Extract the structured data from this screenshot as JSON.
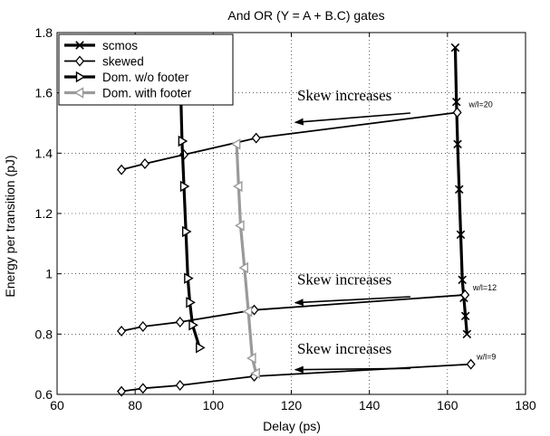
{
  "chart_data": {
    "type": "line",
    "title": "And OR (Y = A + B.C) gates",
    "xlabel": "Delay (ps)",
    "ylabel": "Energy per transition (pJ)",
    "xlim": [
      60,
      180
    ],
    "ylim": [
      0.6,
      1.8
    ],
    "xticks": [
      60,
      80,
      100,
      120,
      140,
      160,
      180
    ],
    "yticks": [
      0.6,
      0.8,
      1.0,
      1.2,
      1.4,
      1.6,
      1.8
    ],
    "xtick_labels": [
      "60",
      "80",
      "100",
      "120",
      "140",
      "160",
      "180"
    ],
    "ytick_labels": [
      "0.6",
      "0.8",
      "1",
      "1.2",
      "1.4",
      "1.6",
      "1.8"
    ],
    "grid": true,
    "legend_position": "top-left",
    "series": [
      {
        "name": "scmos",
        "color": "#000000",
        "marker": "x",
        "line_width": 3.2,
        "groups": [
          {
            "x": [
              162.0,
              162.3,
              162.6,
              163.0,
              163.4,
              163.8,
              164.2,
              164.6,
              165.0
            ],
            "y": [
              1.75,
              1.57,
              1.43,
              1.28,
              1.13,
              0.98,
              0.92,
              0.86,
              0.8
            ]
          }
        ]
      },
      {
        "name": "skewed",
        "color": "#000000",
        "marker": "diamond",
        "line_width": 1.8,
        "groups": [
          {
            "x": [
              76.5,
              82.0,
              91.5,
              110.5,
              166.0
            ],
            "y": [
              0.61,
              0.62,
              0.63,
              0.66,
              0.7
            ]
          },
          {
            "x": [
              76.5,
              82.0,
              91.5,
              110.5,
              164.5
            ],
            "y": [
              0.81,
              0.825,
              0.84,
              0.88,
              0.93
            ]
          },
          {
            "x": [
              76.5,
              82.5,
              92.5,
              111.0,
              162.5
            ],
            "y": [
              1.345,
              1.365,
              1.395,
              1.45,
              1.535
            ]
          }
        ]
      },
      {
        "name": "Dom. w/o footer",
        "color": "#000000",
        "marker": "triangle-right",
        "line_width": 3.2,
        "groups": [
          {
            "x": [
              91.5,
              92.0,
              92.5,
              93.0,
              93.5,
              94.0,
              94.7,
              96.5
            ],
            "y": [
              1.7,
              1.44,
              1.29,
              1.14,
              0.985,
              0.905,
              0.83,
              0.755
            ]
          }
        ]
      },
      {
        "name": "Dom. with footer",
        "color": "#9a9a9a",
        "marker": "triangle-left",
        "line_width": 3.2,
        "groups": [
          {
            "x": [
              106.0,
              106.5,
              107.0,
              108.0,
              109.0,
              110.0,
              111.0
            ],
            "y": [
              1.43,
              1.29,
              1.16,
              1.02,
              0.875,
              0.72,
              0.67
            ]
          }
        ]
      }
    ],
    "annotations": [
      {
        "text": "Skew increases",
        "x": 121.5,
        "y": 1.575,
        "arrow_from": [
          150.5,
          1.533
        ],
        "arrow_to": [
          121.0,
          1.502
        ]
      },
      {
        "text": "Skew increases",
        "x": 121.5,
        "y": 0.965,
        "arrow_from": [
          150.5,
          0.924
        ],
        "arrow_to": [
          121.0,
          0.904
        ]
      },
      {
        "text": "Skew increases",
        "x": 121.5,
        "y": 0.735,
        "arrow_from": [
          150.5,
          0.686
        ],
        "arrow_to": [
          121.0,
          0.682
        ]
      },
      {
        "text": "w/l=20",
        "x": 165.5,
        "y": 1.553,
        "small": true
      },
      {
        "text": "w/l=12",
        "x": 166.5,
        "y": 0.945,
        "small": true
      },
      {
        "text": "w/l=9",
        "x": 167.5,
        "y": 0.715,
        "small": true
      }
    ]
  }
}
